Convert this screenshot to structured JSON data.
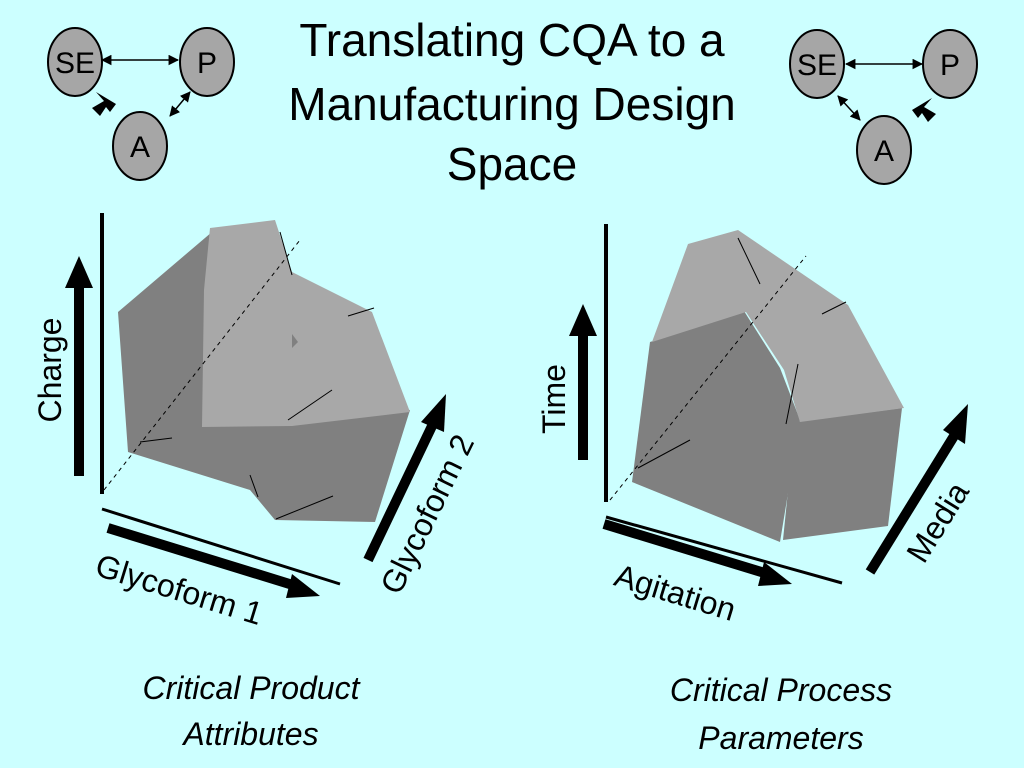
{
  "title": {
    "line1": "Translating CQA to a",
    "line2": "Manufacturing Design",
    "line3": "Space"
  },
  "triangle_left": {
    "nodes": {
      "se": "SE",
      "p": "P",
      "a": "A"
    },
    "edges": [
      {
        "from": "SE",
        "to": "P",
        "style": "double-arrow-thin"
      },
      {
        "from": "SE",
        "to": "A",
        "style": "double-arrow-bold"
      },
      {
        "from": "P",
        "to": "A",
        "style": "double-arrow-thin"
      }
    ]
  },
  "triangle_right": {
    "nodes": {
      "se": "SE",
      "p": "P",
      "a": "A"
    },
    "edges": [
      {
        "from": "SE",
        "to": "P",
        "style": "double-arrow-thin"
      },
      {
        "from": "SE",
        "to": "A",
        "style": "double-arrow-thin"
      },
      {
        "from": "P",
        "to": "A",
        "style": "double-arrow-bold"
      }
    ]
  },
  "left_panel": {
    "axes": {
      "vertical": "Charge",
      "horizontal": "Glycoform 1",
      "depth": "Glycoform 2"
    },
    "caption": {
      "line1": "Critical Product",
      "line2": "Attributes"
    }
  },
  "right_panel": {
    "axes": {
      "vertical": "Time",
      "horizontal": "Agitation",
      "depth": "Media"
    },
    "caption": {
      "line1": "Critical Process",
      "line2": "Parameters"
    }
  },
  "colors": {
    "background": "#ccffff",
    "node_fill": "#a6a6a6",
    "solid_dark": "#808080",
    "solid_light": "#a8a8a8"
  }
}
